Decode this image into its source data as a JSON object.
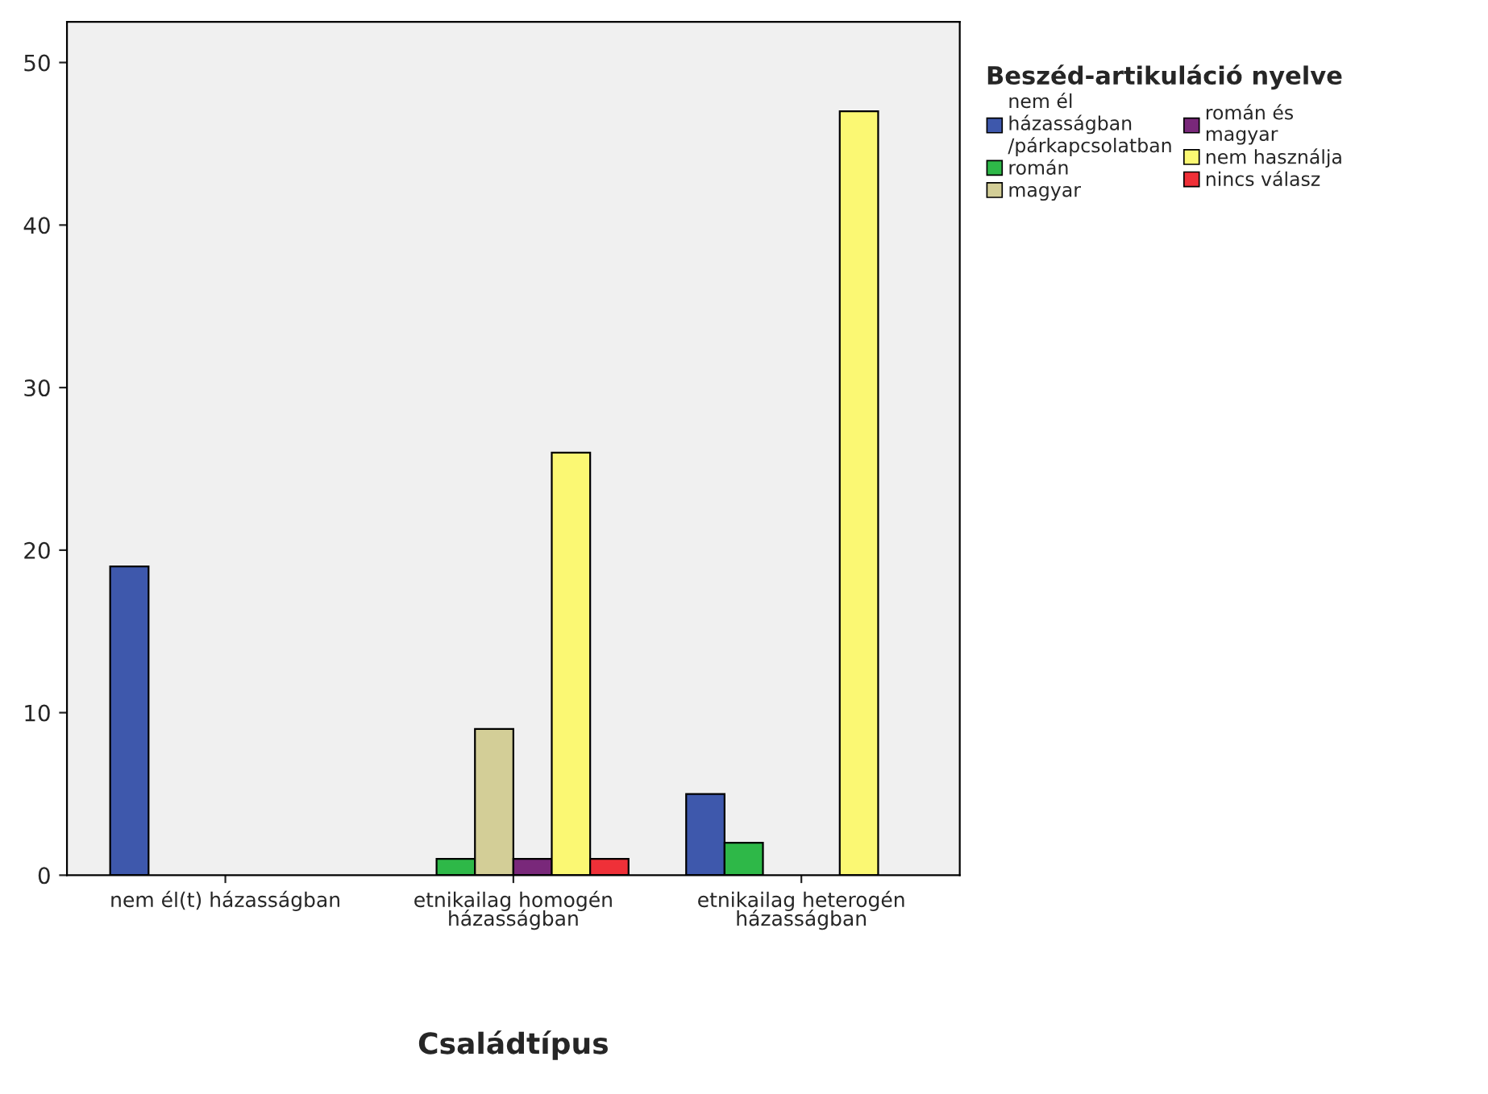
{
  "chart_data": {
    "type": "bar",
    "xlabel": "Családtípus",
    "legend_title": "Beszéd-artikuláció nyelve",
    "categories": [
      "nem él(t) házasságban",
      "etnikailag homogén házasságban",
      "etnikailag heterogén házasságban"
    ],
    "series": [
      {
        "name": "nem él házasságban /párkapcsolatban",
        "color": "#3e58ac",
        "values": [
          19,
          null,
          5
        ]
      },
      {
        "name": "román",
        "color": "#2eb848",
        "values": [
          null,
          1,
          2
        ]
      },
      {
        "name": "magyar",
        "color": "#d3ce97",
        "values": [
          null,
          9,
          null
        ]
      },
      {
        "name": "román és magyar",
        "color": "#79287a",
        "values": [
          null,
          1,
          null
        ]
      },
      {
        "name": "nem használja",
        "color": "#fbf873",
        "values": [
          null,
          26,
          47
        ]
      },
      {
        "name": "nincs válasz",
        "color": "#ef3038",
        "values": [
          null,
          1,
          null
        ]
      }
    ],
    "ylim": [
      0,
      52.5
    ],
    "yticks": [
      0,
      10,
      20,
      30,
      40,
      50
    ],
    "grid": false,
    "legend": "right"
  }
}
